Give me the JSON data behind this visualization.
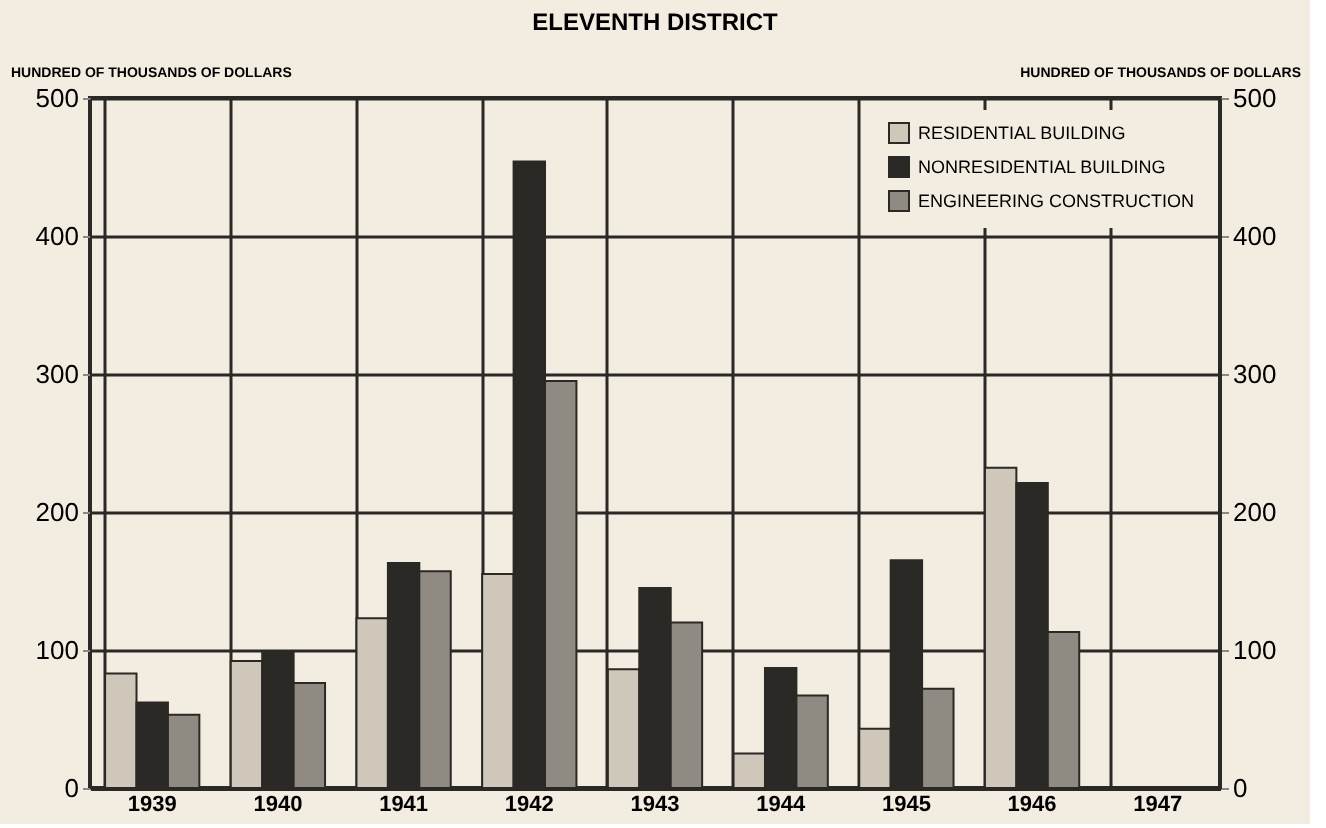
{
  "chart_data": {
    "type": "bar",
    "title": "ELEVENTH DISTRICT",
    "ylabel": "HUNDRED OF THOUSANDS OF DOLLARS",
    "y2label": "HUNDRED OF THOUSANDS OF DOLLARS",
    "categories": [
      "1939",
      "1940",
      "1941",
      "1942",
      "1943",
      "1944",
      "1945",
      "1946",
      "1947"
    ],
    "series": [
      {
        "name": "RESIDENTIAL BUILDING",
        "color": "#cfc8ba",
        "values": [
          83,
          92,
          123,
          155,
          86,
          25,
          43,
          232,
          null
        ]
      },
      {
        "name": "NONRESIDENTIAL BUILDING",
        "color": "#2b2926",
        "values": [
          62,
          98,
          163,
          454,
          145,
          87,
          165,
          221,
          null
        ]
      },
      {
        "name": "ENGINEERING CONSTRUCTION",
        "color": "#8f8a82",
        "values": [
          53,
          76,
          157,
          295,
          120,
          67,
          72,
          113,
          null
        ]
      }
    ],
    "ylim": [
      0,
      500
    ],
    "yticks": [
      0,
      100,
      200,
      300,
      400,
      500
    ],
    "y2lim": [
      0,
      500
    ],
    "y2ticks": [
      0,
      100,
      200,
      300,
      400,
      500
    ],
    "grid": true,
    "legend": "top right"
  }
}
